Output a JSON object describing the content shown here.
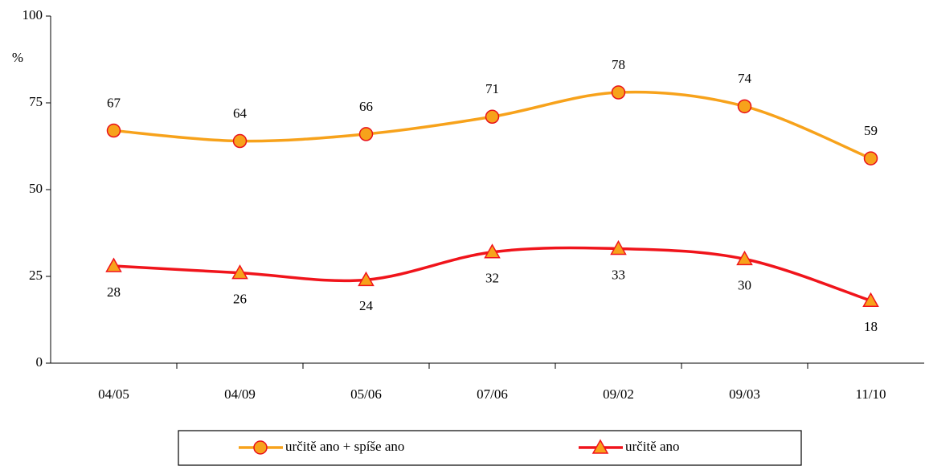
{
  "chart_data": {
    "type": "line",
    "y_label": "%",
    "categories": [
      "04/05",
      "04/09",
      "05/06",
      "07/06",
      "09/02",
      "09/03",
      "11/10"
    ],
    "series": [
      {
        "name": "určitě ano + spíše ano",
        "color": "#f7a21b",
        "marker_stroke": "#e8101a",
        "marker": "circle",
        "values": [
          67,
          64,
          66,
          71,
          78,
          74,
          59
        ]
      },
      {
        "name": "určitě ano",
        "color": "#f0141b",
        "marker_fill": "#f7a21b",
        "marker": "triangle",
        "values": [
          28,
          26,
          24,
          32,
          33,
          30,
          18
        ]
      }
    ],
    "ylim": [
      0,
      100
    ],
    "yticks": [
      0,
      25,
      50,
      75,
      100
    ],
    "grid": false,
    "legend": "bottom"
  }
}
